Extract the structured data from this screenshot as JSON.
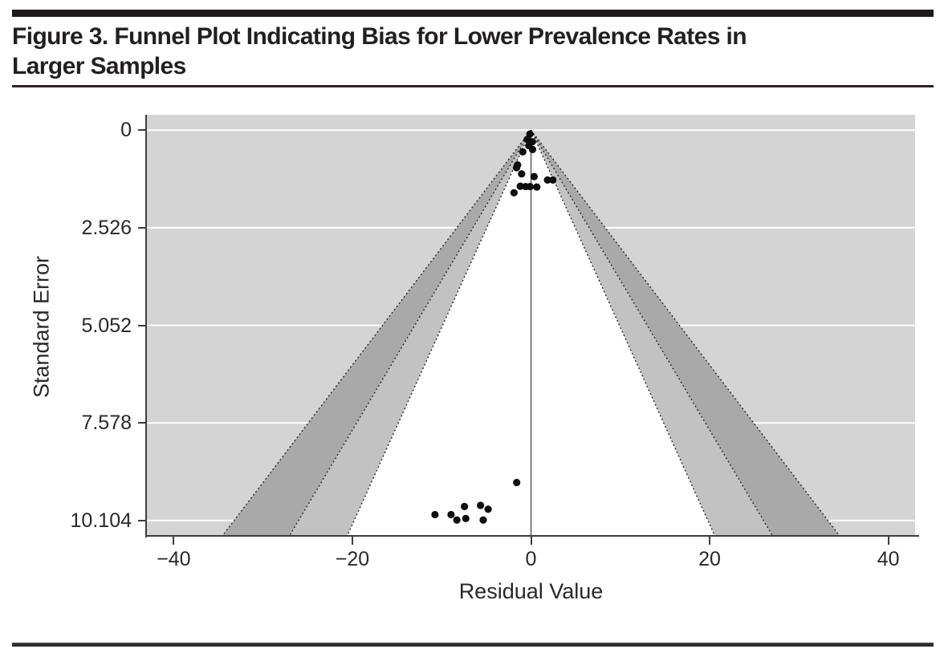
{
  "figure": {
    "title_line1": "Figure 3. Funnel Plot Indicating Bias for Lower Prevalence Rates in",
    "title_line2": "Larger Samples"
  },
  "chart_data": {
    "type": "scatter",
    "subtype": "funnel-plot",
    "title": "Figure 3. Funnel Plot Indicating Bias for Lower Prevalence Rates in Larger Samples",
    "xlabel": "Residual Value",
    "ylabel": "Standard Error",
    "xlim": [
      -43,
      43
    ],
    "ylim": [
      -0.4,
      10.5
    ],
    "y_axis_direction": "standard error increases downward",
    "x_ticks": {
      "values": [
        -40,
        -20,
        0,
        20,
        40
      ],
      "labels": [
        "−40",
        "−20",
        "0",
        "20",
        "40"
      ]
    },
    "y_ticks": {
      "values": [
        0,
        2.526,
        5.052,
        7.578,
        10.104
      ],
      "labels": [
        "0",
        "2.526",
        "5.052",
        "7.578",
        "10.104"
      ]
    },
    "grid": {
      "horizontal": true,
      "vertical": false,
      "color": "#ffffff"
    },
    "legend": "none",
    "funnel": {
      "center_x": 0,
      "apex_se": 0,
      "se_multipliers": [
        1.96,
        2.576,
        3.29
      ],
      "inner_region_color": "#ffffff",
      "band_1_color": "#c2c2c2",
      "band_2_color": "#a9a9a9",
      "outside_color": "#d4d4d4",
      "boundary_line": "dotted",
      "boundary_color": "#1a1a1a",
      "center_line_color": "#595959"
    },
    "points": [
      [
        -0.12,
        0.1
      ],
      [
        -0.42,
        0.24
      ],
      [
        0.15,
        0.3
      ],
      [
        -0.25,
        0.4
      ],
      [
        0.18,
        0.5
      ],
      [
        -0.92,
        0.56
      ],
      [
        -1.5,
        0.9
      ],
      [
        -1.62,
        0.97
      ],
      [
        -1.05,
        1.13
      ],
      [
        0.35,
        1.2
      ],
      [
        1.85,
        1.29
      ],
      [
        2.45,
        1.29
      ],
      [
        -1.2,
        1.45
      ],
      [
        -0.6,
        1.46
      ],
      [
        -0.1,
        1.46
      ],
      [
        0.65,
        1.47
      ],
      [
        -1.9,
        1.62
      ],
      [
        -1.6,
        9.12
      ],
      [
        -5.65,
        9.71
      ],
      [
        -7.45,
        9.74
      ],
      [
        -4.8,
        9.81
      ],
      [
        -10.75,
        9.95
      ],
      [
        -8.95,
        9.95
      ],
      [
        -7.3,
        10.05
      ],
      [
        -8.3,
        10.09
      ],
      [
        -5.35,
        10.09
      ]
    ],
    "point_color": "#0e0e0e",
    "point_radius_px": 4.6
  }
}
